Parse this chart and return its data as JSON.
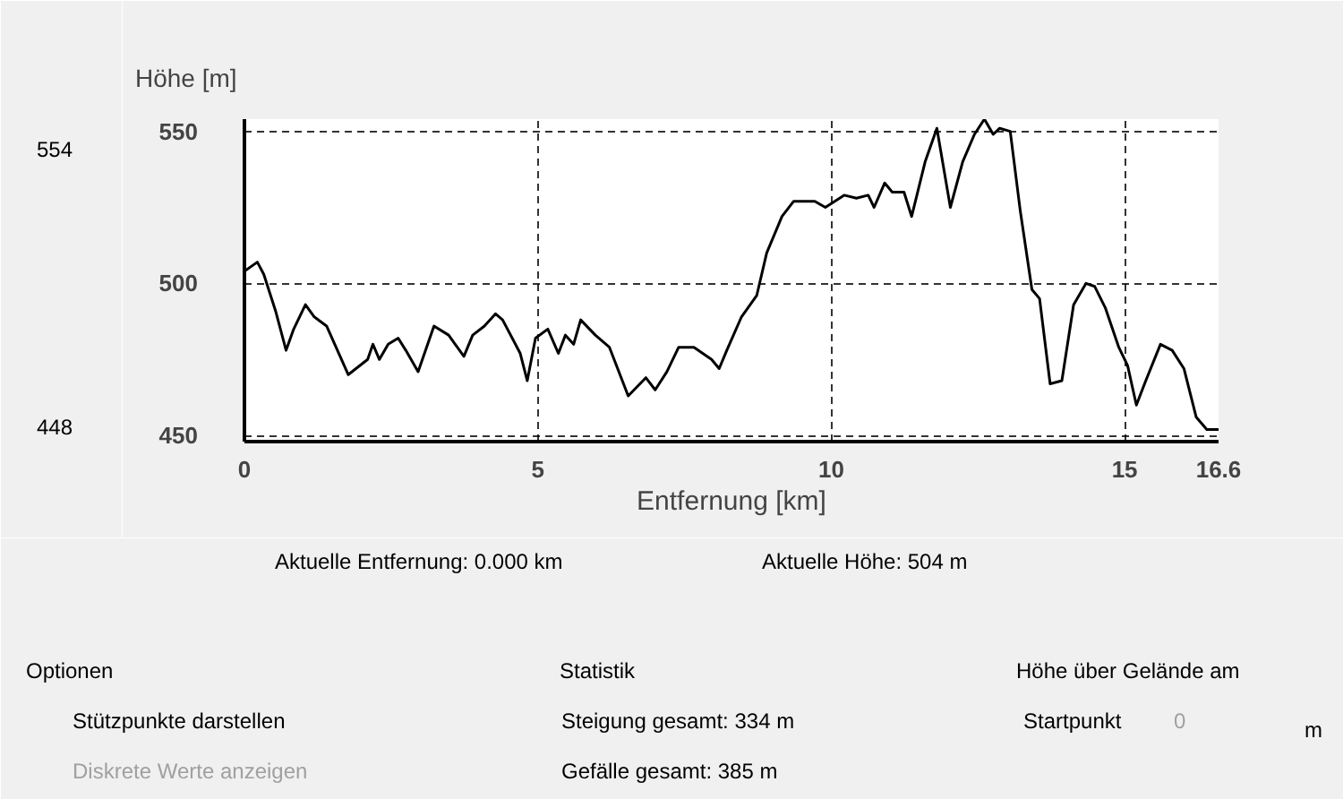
{
  "chart_data": {
    "type": "line",
    "xlabel": "Entfernung [km]",
    "ylabel": "Höhe [m]",
    "x": [
      0,
      0.22,
      0.33,
      0.53,
      0.71,
      0.84,
      1.04,
      1.19,
      1.4,
      1.77,
      2.1,
      2.19,
      2.3,
      2.45,
      2.62,
      2.75,
      2.96,
      3.23,
      3.48,
      3.74,
      3.89,
      4.09,
      4.28,
      4.4,
      4.7,
      4.82,
      4.96,
      5.17,
      5.35,
      5.47,
      5.61,
      5.73,
      5.98,
      6.22,
      6.54,
      6.84,
      7.0,
      7.2,
      7.4,
      7.66,
      7.96,
      8.09,
      8.22,
      8.47,
      8.73,
      8.9,
      9.16,
      9.36,
      9.72,
      9.9,
      10.22,
      10.43,
      10.63,
      10.73,
      10.91,
      11.04,
      11.24,
      11.37,
      11.6,
      11.8,
      12.03,
      12.24,
      12.44,
      12.61,
      12.76,
      12.87,
      13.05,
      13.22,
      13.42,
      13.55,
      13.73,
      13.93,
      14.13,
      14.34,
      14.49,
      14.67,
      14.9,
      15.05,
      15.2,
      15.36,
      15.61,
      15.81,
      16.01,
      16.22,
      16.4,
      16.6
    ],
    "series": [
      {
        "color": "#000000",
        "values": [
          504,
          507,
          503,
          491,
          478,
          485,
          493,
          489,
          486,
          470,
          475,
          480,
          475,
          480,
          482,
          478,
          471,
          486,
          483,
          476,
          483,
          486,
          490,
          488,
          477,
          468,
          482,
          485,
          477,
          483,
          480,
          488,
          483,
          479,
          463,
          469,
          465,
          471,
          479,
          479,
          475,
          472,
          478,
          489,
          496,
          510,
          522,
          527,
          527,
          525,
          529,
          528,
          529,
          525,
          533,
          530,
          530,
          522,
          540,
          551,
          525,
          540,
          549,
          554,
          549,
          551,
          550,
          524,
          498,
          495,
          467,
          468,
          493,
          500,
          499,
          492,
          479,
          473,
          460,
          468,
          480,
          478,
          472,
          456,
          452,
          452
        ]
      }
    ],
    "xlim": [
      0,
      16.6
    ],
    "ylim": [
      448,
      554
    ],
    "xticks": [
      0,
      5,
      10,
      15,
      16.6
    ],
    "yticks": [
      450,
      500,
      550
    ],
    "grid": true,
    "marker": "none",
    "line_style": "solid",
    "annotations": [
      "554",
      "448",
      "Aktuelle Entfernung: 0.000 km",
      "Aktuelle Höhe: 504 m",
      "Optionen",
      "Stützpunkte darstellen",
      "Diskrete Werte anzeigen",
      "Statistik",
      "Steigung gesamt: 334 m",
      "Gefälle gesamt: 385 m",
      "Höhe über Gelände am",
      "Startpunkt",
      "0",
      "m"
    ]
  }
}
